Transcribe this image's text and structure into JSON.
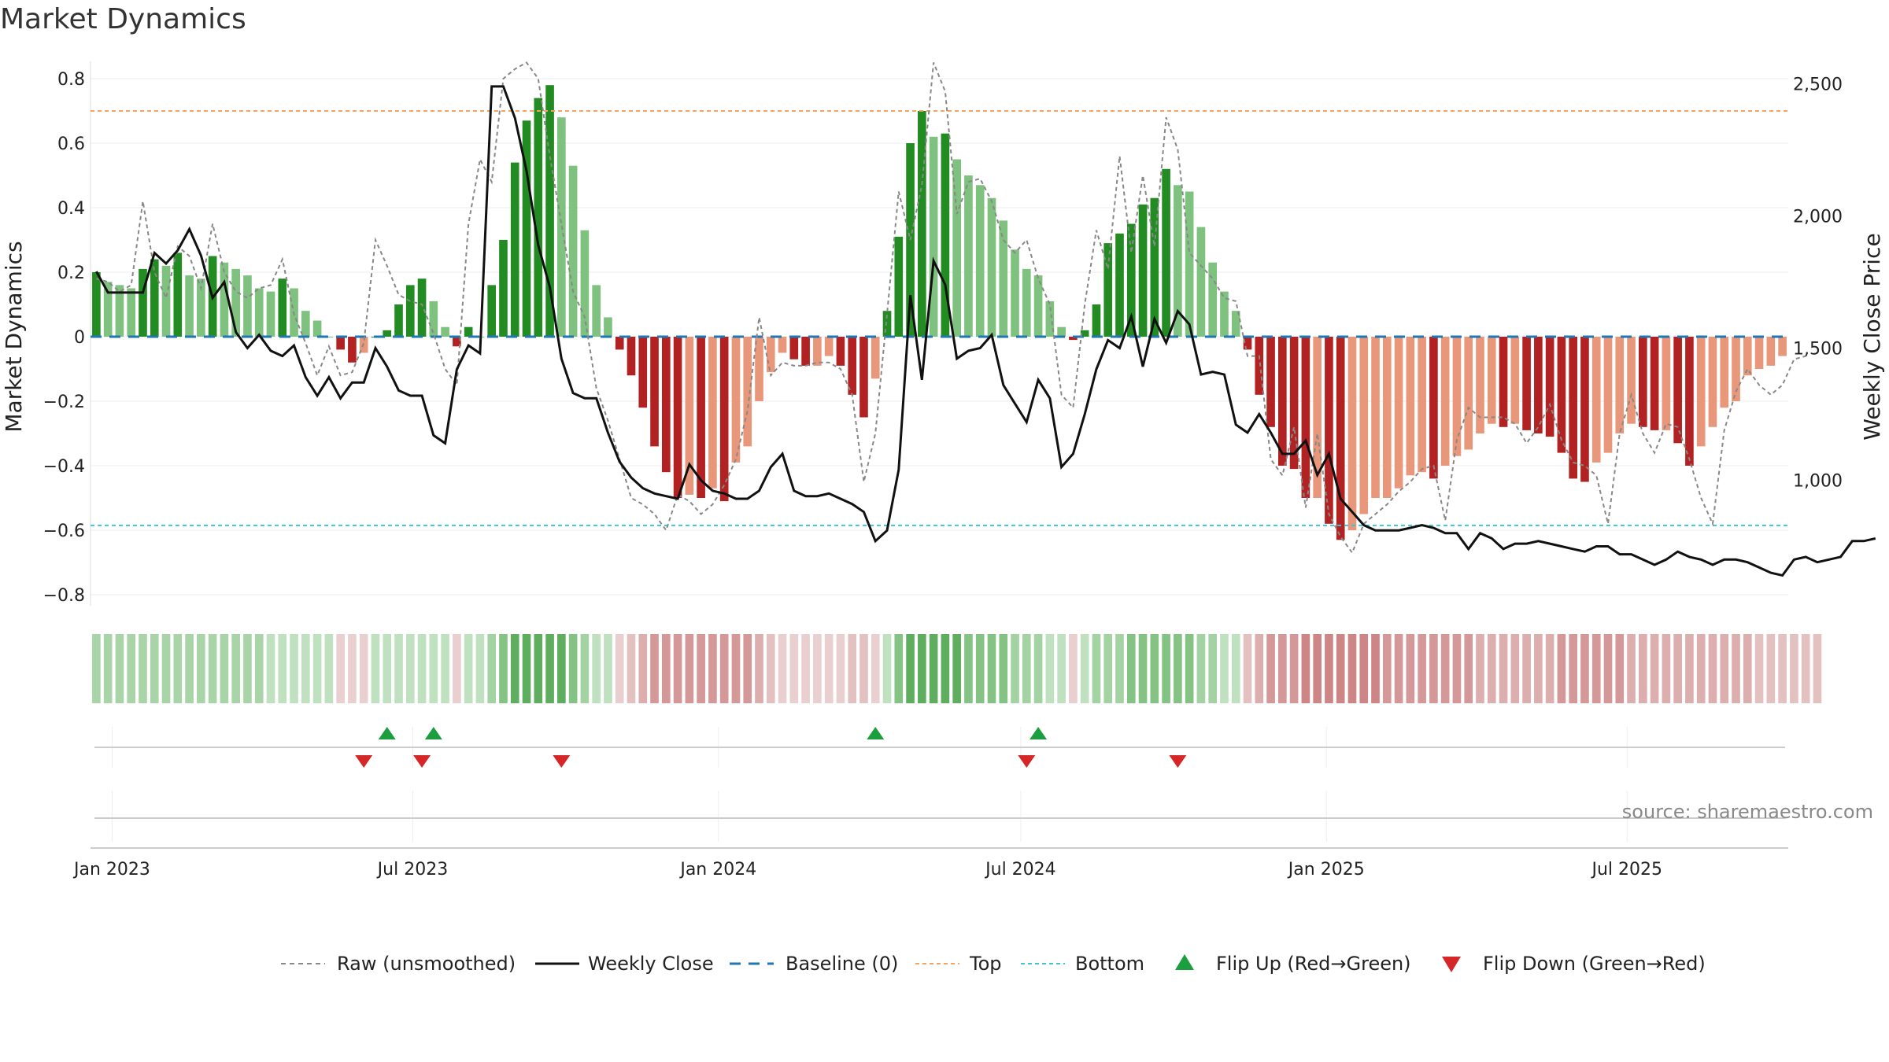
{
  "chart_data": {
    "type": "bar",
    "title": "Market Dynamics",
    "ylabel_left": "Market Dynamics",
    "ylabel_right": "Weekly Close Price",
    "source": "source: sharemaestro.com",
    "ylim_left": [
      -0.85,
      0.83
    ],
    "ylim_right": [
      570,
      2590
    ],
    "y_ticks_left": [
      "0.8",
      "0.6",
      "0.4",
      "0.2",
      "0",
      "−0.2",
      "−0.4",
      "−0.6",
      "−0.8"
    ],
    "y_ticks_right": [
      "2,500",
      "2,000",
      "1,500",
      "1,000"
    ],
    "x_ticks": [
      "Jan 2023",
      "Jul 2023",
      "Jan 2024",
      "Jul 2024",
      "Jan 2025",
      "Jul 2025"
    ],
    "x_start": "2022-12-19",
    "interval_days": 7,
    "top_level": 0.7,
    "bottom_level": -0.585,
    "baseline": 0,
    "grid": true,
    "legend_position": "bottom",
    "legend": [
      "Raw (unsmoothed)",
      "Weekly Close",
      "Baseline (0)",
      "Top",
      "Bottom",
      "Flip Up (Red→Green)",
      "Flip Down (Green→Red)"
    ],
    "dynamics": [
      0.2,
      0.17,
      0.16,
      0.15,
      0.21,
      0.24,
      0.22,
      0.26,
      0.19,
      0.18,
      0.25,
      0.23,
      0.21,
      0.19,
      0.15,
      0.14,
      0.18,
      0.15,
      0.08,
      0.05,
      0,
      -0.04,
      -0.08,
      -0.05,
      0,
      0.02,
      0.1,
      0.16,
      0.18,
      0.11,
      0.03,
      -0.03,
      0.03,
      0,
      0.16,
      0.3,
      0.54,
      0.67,
      0.74,
      0.78,
      0.68,
      0.53,
      0.33,
      0.16,
      0.06,
      -0.04,
      -0.12,
      -0.22,
      -0.34,
      -0.42,
      -0.5,
      -0.49,
      -0.5,
      -0.47,
      -0.51,
      -0.39,
      -0.34,
      -0.2,
      -0.11,
      -0.05,
      -0.07,
      -0.09,
      -0.09,
      -0.06,
      -0.09,
      -0.18,
      -0.25,
      -0.13,
      0.08,
      0.31,
      0.6,
      0.7,
      0.62,
      0.63,
      0.55,
      0.5,
      0.47,
      0.43,
      0.36,
      0.27,
      0.21,
      0.19,
      0.11,
      0.03,
      -0.01,
      0.02,
      0.1,
      0.29,
      0.32,
      0.35,
      0.41,
      0.43,
      0.52,
      0.47,
      0.45,
      0.34,
      0.23,
      0.14,
      0.08,
      -0.04,
      -0.18,
      -0.28,
      -0.4,
      -0.41,
      -0.5,
      -0.5,
      -0.58,
      -0.63,
      -0.6,
      -0.55,
      -0.5,
      -0.5,
      -0.47,
      -0.43,
      -0.42,
      -0.44,
      -0.4,
      -0.37,
      -0.35,
      -0.3,
      -0.27,
      -0.28,
      -0.27,
      -0.29,
      -0.3,
      -0.31,
      -0.36,
      -0.44,
      -0.45,
      -0.39,
      -0.36,
      -0.3,
      -0.27,
      -0.28,
      -0.29,
      -0.29,
      -0.33,
      -0.4,
      -0.34,
      -0.28,
      -0.22,
      -0.2,
      -0.12,
      -0.1,
      -0.09,
      -0.06
    ],
    "raw": [
      0.18,
      0.17,
      0.14,
      0.16,
      0.42,
      0.2,
      0.12,
      0.28,
      0.25,
      0.15,
      0.35,
      0.2,
      0.14,
      0.12,
      0.15,
      0.16,
      0.24,
      0.07,
      -0.02,
      -0.12,
      -0.03,
      -0.12,
      -0.11,
      -0.02,
      0.3,
      0.22,
      0.13,
      0.11,
      0.1,
      0.01,
      -0.1,
      -0.15,
      0.35,
      0.55,
      0.48,
      0.8,
      0.83,
      0.85,
      0.8,
      0.56,
      0.35,
      0.14,
      0.06,
      -0.16,
      -0.26,
      -0.38,
      -0.5,
      -0.52,
      -0.55,
      -0.6,
      -0.49,
      -0.51,
      -0.55,
      -0.52,
      -0.46,
      -0.38,
      -0.23,
      0.06,
      -0.12,
      -0.08,
      -0.09,
      -0.09,
      -0.08,
      -0.08,
      -0.1,
      -0.18,
      -0.45,
      -0.3,
      0.07,
      0.45,
      0.3,
      0.47,
      0.85,
      0.76,
      0.38,
      0.48,
      0.49,
      0.42,
      0.3,
      0.26,
      0.3,
      0.18,
      0.1,
      -0.18,
      -0.22,
      0.1,
      0.33,
      0.21,
      0.56,
      0.26,
      0.5,
      0.28,
      0.68,
      0.58,
      0.26,
      0.22,
      0.18,
      0.12,
      0.11,
      -0.06,
      -0.06,
      -0.38,
      -0.43,
      -0.28,
      -0.53,
      -0.3,
      -0.55,
      -0.62,
      -0.67,
      -0.58,
      -0.55,
      -0.52,
      -0.48,
      -0.45,
      -0.41,
      -0.4,
      -0.57,
      -0.32,
      -0.22,
      -0.25,
      -0.25,
      -0.25,
      -0.27,
      -0.33,
      -0.28,
      -0.21,
      -0.32,
      -0.39,
      -0.4,
      -0.43,
      -0.58,
      -0.3,
      -0.18,
      -0.3,
      -0.36,
      -0.27,
      -0.28,
      -0.38,
      -0.5,
      -0.58,
      -0.29,
      -0.17,
      -0.1,
      -0.15,
      -0.18,
      -0.15,
      -0.07,
      -0.06
    ],
    "weekly_close": [
      1790,
      1710,
      1710,
      1710,
      1710,
      1860,
      1820,
      1870,
      1950,
      1850,
      1690,
      1750,
      1560,
      1500,
      1550,
      1490,
      1470,
      1510,
      1390,
      1320,
      1390,
      1310,
      1370,
      1370,
      1500,
      1430,
      1340,
      1320,
      1320,
      1170,
      1140,
      1420,
      1510,
      1480,
      2490,
      2490,
      2370,
      2170,
      1890,
      1730,
      1460,
      1330,
      1310,
      1310,
      1180,
      1070,
      1010,
      970,
      950,
      940,
      930,
      1060,
      1000,
      960,
      950,
      930,
      930,
      960,
      1050,
      1100,
      960,
      940,
      940,
      950,
      930,
      910,
      880,
      770,
      810,
      1040,
      1700,
      1380,
      1830,
      1740,
      1460,
      1490,
      1500,
      1550,
      1360,
      1290,
      1220,
      1380,
      1310,
      1050,
      1100,
      1250,
      1420,
      1530,
      1500,
      1620,
      1430,
      1610,
      1520,
      1640,
      1590,
      1400,
      1410,
      1400,
      1210,
      1180,
      1250,
      1180,
      1100,
      1100,
      1150,
      1020,
      1100,
      930,
      880,
      830,
      810,
      810,
      810,
      820,
      830,
      820,
      800,
      800,
      740,
      800,
      780,
      740,
      760,
      760,
      770,
      760,
      750,
      740,
      730,
      750,
      750,
      720,
      720,
      700,
      680,
      700,
      730,
      710,
      700,
      680,
      700,
      700,
      690,
      670,
      650,
      640,
      700,
      710,
      690,
      700,
      710,
      770,
      770,
      780
    ],
    "strip_colors": [
      "#a8d4a8",
      "#a8d4a8",
      "#a8d4a8",
      "#a8d4a8",
      "#a8d4a8",
      "#a8d4a8",
      "#a8d4a8",
      "#a8d4a8",
      "#a8d4a8",
      "#a8d4a8",
      "#a8d4a8",
      "#a8d4a8",
      "#a8d4a8",
      "#a8d4a8",
      "#a8d4a8",
      "#bfe1bf",
      "#bfe1bf",
      "#bfe1bf",
      "#bfe1bf",
      "#bfe1bf",
      "#bfe1bf",
      "#e9cfcf",
      "#e9cfcf",
      "#e9cfcf",
      "#bfe1bf",
      "#bfe1bf",
      "#bfe1bf",
      "#bfe1bf",
      "#bfe1bf",
      "#bfe1bf",
      "#bfe1bf",
      "#e9cfcf",
      "#bfe1bf",
      "#bfe1bf",
      "#a3d3a3",
      "#84c384",
      "#5fae5f",
      "#5fae5f",
      "#5fae5f",
      "#5fae5f",
      "#5fae5f",
      "#84c384",
      "#a3d3a3",
      "#bfe1bf",
      "#bfe1bf",
      "#e9cfcf",
      "#e4c1c1",
      "#dcaeae",
      "#d49898",
      "#d49898",
      "#d49898",
      "#d49898",
      "#d49898",
      "#d49898",
      "#d49898",
      "#d49898",
      "#d49898",
      "#dcaeae",
      "#e4c1c1",
      "#e9cfcf",
      "#e9cfcf",
      "#e9cfcf",
      "#e9cfcf",
      "#e9cfcf",
      "#e9cfcf",
      "#e4c1c1",
      "#e4c1c1",
      "#e9cfcf",
      "#bfe1bf",
      "#84c384",
      "#5fae5f",
      "#5fae5f",
      "#5fae5f",
      "#5fae5f",
      "#5fae5f",
      "#84c384",
      "#84c384",
      "#84c384",
      "#84c384",
      "#a3d3a3",
      "#a3d3a3",
      "#a3d3a3",
      "#bfe1bf",
      "#bfe1bf",
      "#e9cfcf",
      "#bfe1bf",
      "#a3d3a3",
      "#a3d3a3",
      "#a3d3a3",
      "#84c384",
      "#84c384",
      "#84c384",
      "#84c384",
      "#84c384",
      "#84c384",
      "#a3d3a3",
      "#a3d3a3",
      "#bfe1bf",
      "#bfe1bf",
      "#e4c1c1",
      "#dcaeae",
      "#d49898",
      "#d49898",
      "#d49898",
      "#cd8585",
      "#cd8585",
      "#cd8585",
      "#cd8585",
      "#cd8585",
      "#cd8585",
      "#cd8585",
      "#d49898",
      "#d49898",
      "#d49898",
      "#d49898",
      "#d49898",
      "#d49898",
      "#d49898",
      "#d49898",
      "#dcaeae",
      "#dcaeae",
      "#dcaeae",
      "#dcaeae",
      "#dcaeae",
      "#dcaeae",
      "#dcaeae",
      "#d49898",
      "#d49898",
      "#d49898",
      "#d49898",
      "#d49898",
      "#d49898",
      "#dcaeae",
      "#dcaeae",
      "#dcaeae",
      "#dcaeae",
      "#dcaeae",
      "#dcaeae",
      "#dcaeae",
      "#dcaeae",
      "#dcaeae",
      "#dcaeae",
      "#dcaeae",
      "#e4c1c1",
      "#e4c1c1",
      "#e4c1c1",
      "#e4c1c1",
      "#e4c1c1",
      "#e4c1c1"
    ],
    "flip_up_dates": [
      "2023-06-12",
      "2023-07-10",
      "2024-04-01",
      "2024-07-08"
    ],
    "flip_down_dates": [
      "2023-05-29",
      "2023-07-03",
      "2023-09-25",
      "2024-07-01",
      "2024-09-30"
    ]
  },
  "colors": {
    "strong_green": "#228b22",
    "light_green": "#7fc17f",
    "strong_red": "#b22222",
    "light_red": "#e9977a",
    "top_line": "#f4a460",
    "bottom_line": "#40c4d0",
    "baseline": "#1f77b4",
    "flip_up": "#1a9e3e",
    "flip_down": "#d62728",
    "close_line": "#111111",
    "raw_line": "#888888"
  }
}
